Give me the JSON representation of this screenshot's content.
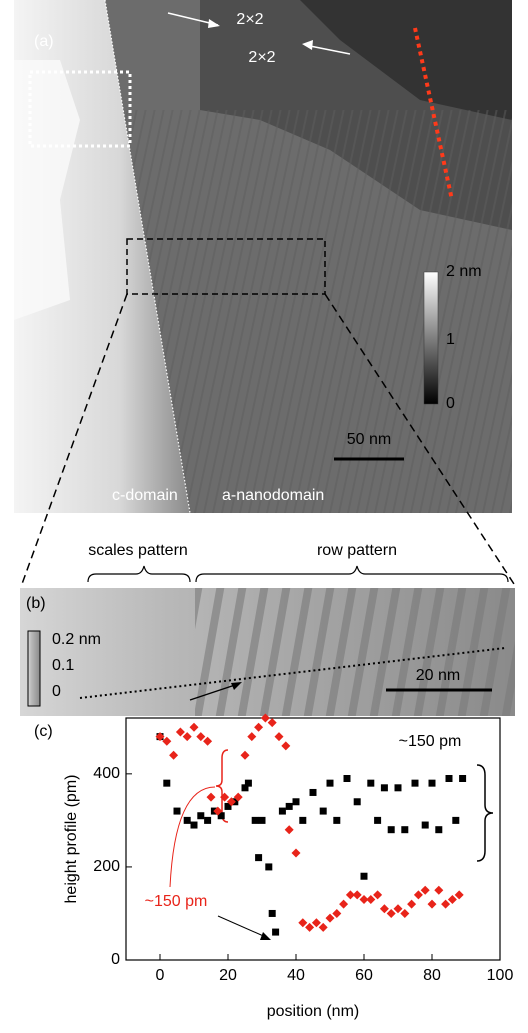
{
  "panel_a": {
    "label": "(a)",
    "arrow_labels": [
      "2×2",
      "2×2"
    ],
    "colorbar": {
      "max": "2 nm",
      "mid": "1",
      "min": "0"
    },
    "scale_bar": "50 nm",
    "regions": [
      "c-domain",
      "a-nanodomain"
    ]
  },
  "panel_b": {
    "label": "(b)",
    "patterns": [
      "scales pattern",
      "row pattern"
    ],
    "colorbar": {
      "max": "0.2 nm",
      "mid": "0.1",
      "min": "0"
    },
    "scale_bar": "20 nm"
  },
  "chart_data": {
    "type": "scatter",
    "panel_label": "(c)",
    "x_label": "position (nm)",
    "y_label": "height profile (pm)",
    "annotations": [
      {
        "text": "~150 pm",
        "color": "#000000"
      },
      {
        "text": "~150 pm",
        "color": "#e8241a"
      }
    ],
    "xlim": [
      -10,
      100
    ],
    "xticks": [
      0,
      20,
      40,
      60,
      80,
      100
    ],
    "ylim": [
      0,
      520
    ],
    "yticks": [
      0,
      200,
      400
    ],
    "series": [
      {
        "color": "#000000",
        "marker": "square",
        "x": [
          0,
          2,
          5,
          8,
          10,
          12,
          14,
          16,
          18,
          20,
          22,
          25,
          26,
          28,
          29,
          30,
          32,
          33,
          34,
          36,
          38,
          40,
          42,
          45,
          48,
          50,
          52,
          55,
          58,
          60,
          62,
          64,
          66,
          68,
          70,
          72,
          75,
          78,
          80,
          82,
          85,
          87,
          89
        ],
        "values": [
          480,
          380,
          320,
          300,
          290,
          310,
          300,
          320,
          310,
          330,
          340,
          370,
          380,
          300,
          220,
          300,
          200,
          100,
          60,
          320,
          330,
          340,
          300,
          360,
          320,
          380,
          300,
          390,
          340,
          180,
          380,
          300,
          370,
          280,
          370,
          280,
          380,
          290,
          380,
          280,
          390,
          300,
          390
        ]
      },
      {
        "color": "#e8241a",
        "marker": "diamond",
        "x": [
          0,
          2,
          4,
          6,
          8,
          10,
          12,
          14,
          15,
          17,
          19,
          21,
          23,
          25,
          27,
          29,
          31,
          33,
          35,
          37,
          38,
          40,
          42,
          44,
          46,
          48,
          50,
          52,
          54,
          56,
          58,
          60,
          62,
          64,
          66,
          68,
          70,
          72,
          74,
          76,
          78,
          80,
          82,
          84,
          86,
          88
        ],
        "values": [
          480,
          470,
          440,
          490,
          480,
          500,
          480,
          470,
          350,
          320,
          350,
          340,
          350,
          440,
          480,
          500,
          520,
          510,
          480,
          460,
          280,
          230,
          80,
          70,
          80,
          70,
          90,
          100,
          120,
          140,
          140,
          130,
          130,
          140,
          110,
          100,
          110,
          100,
          120,
          140,
          150,
          120,
          150,
          120,
          130,
          140
        ]
      }
    ]
  }
}
